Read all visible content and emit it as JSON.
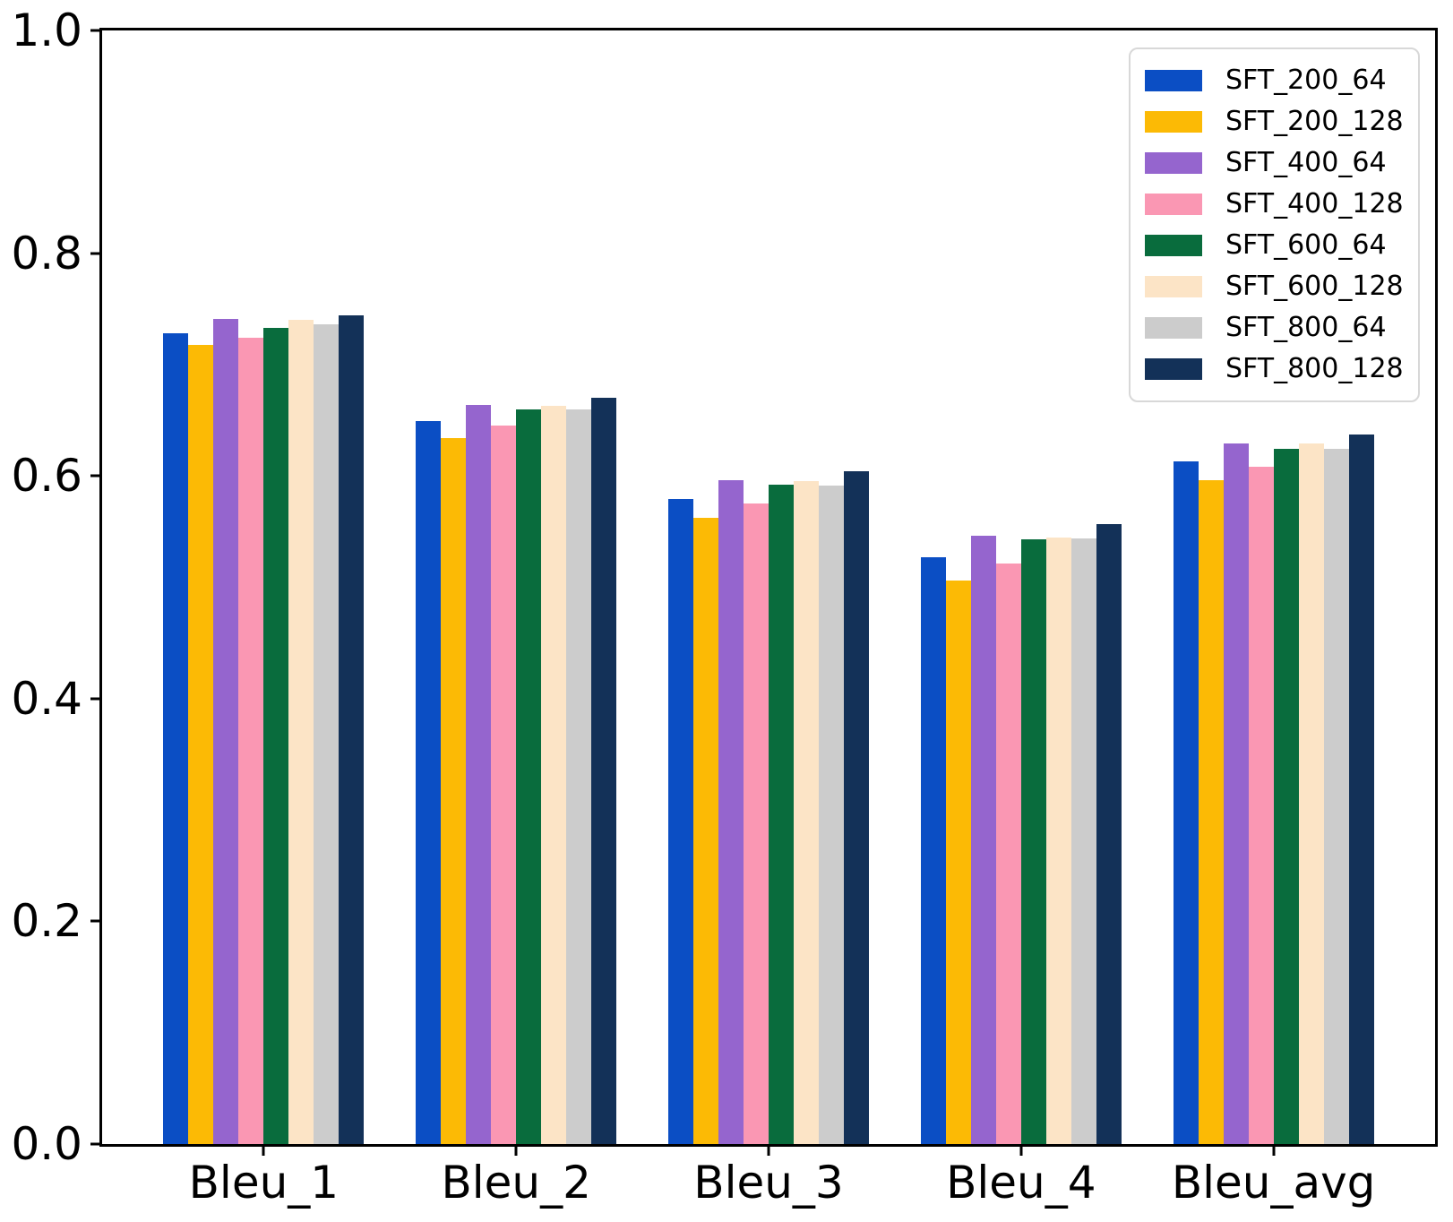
{
  "figure": {
    "background": "#ffffff",
    "spine_color": "#000000"
  },
  "chart_data": {
    "type": "bar",
    "title": "",
    "xlabel": "",
    "ylabel": "",
    "categories": [
      "Bleu_1",
      "Bleu_2",
      "Bleu_3",
      "Bleu_4",
      "Bleu_avg"
    ],
    "series": [
      {
        "name": "SFT_200_64",
        "color": "#0b4ec4",
        "values": [
          0.728,
          0.649,
          0.579,
          0.527,
          0.613
        ]
      },
      {
        "name": "SFT_200_128",
        "color": "#fcba05",
        "values": [
          0.718,
          0.634,
          0.562,
          0.506,
          0.596
        ]
      },
      {
        "name": "SFT_400_64",
        "color": "#9565ce",
        "values": [
          0.741,
          0.664,
          0.596,
          0.546,
          0.629
        ]
      },
      {
        "name": "SFT_400_128",
        "color": "#fa97b3",
        "values": [
          0.724,
          0.645,
          0.575,
          0.521,
          0.608
        ]
      },
      {
        "name": "SFT_600_64",
        "color": "#096c3d",
        "values": [
          0.733,
          0.66,
          0.592,
          0.543,
          0.624
        ]
      },
      {
        "name": "SFT_600_128",
        "color": "#fce4c6",
        "values": [
          0.74,
          0.663,
          0.595,
          0.545,
          0.629
        ]
      },
      {
        "name": "SFT_800_64",
        "color": "#cccccc",
        "values": [
          0.736,
          0.66,
          0.591,
          0.544,
          0.624
        ]
      },
      {
        "name": "SFT_800_128",
        "color": "#133158",
        "values": [
          0.744,
          0.67,
          0.604,
          0.557,
          0.637
        ]
      }
    ],
    "ylim": [
      0.0,
      1.0
    ],
    "yticks": [
      0.0,
      0.2,
      0.4,
      0.6,
      0.8,
      1.0
    ],
    "ytick_labels": [
      "0.0",
      "0.2",
      "0.4",
      "0.6",
      "0.8",
      "1.0"
    ],
    "grid": false,
    "legend": {
      "position": "upper right",
      "entries": [
        "SFT_200_64",
        "SFT_200_128",
        "SFT_400_64",
        "SFT_400_128",
        "SFT_600_64",
        "SFT_600_128",
        "SFT_800_64",
        "SFT_800_128"
      ]
    }
  }
}
